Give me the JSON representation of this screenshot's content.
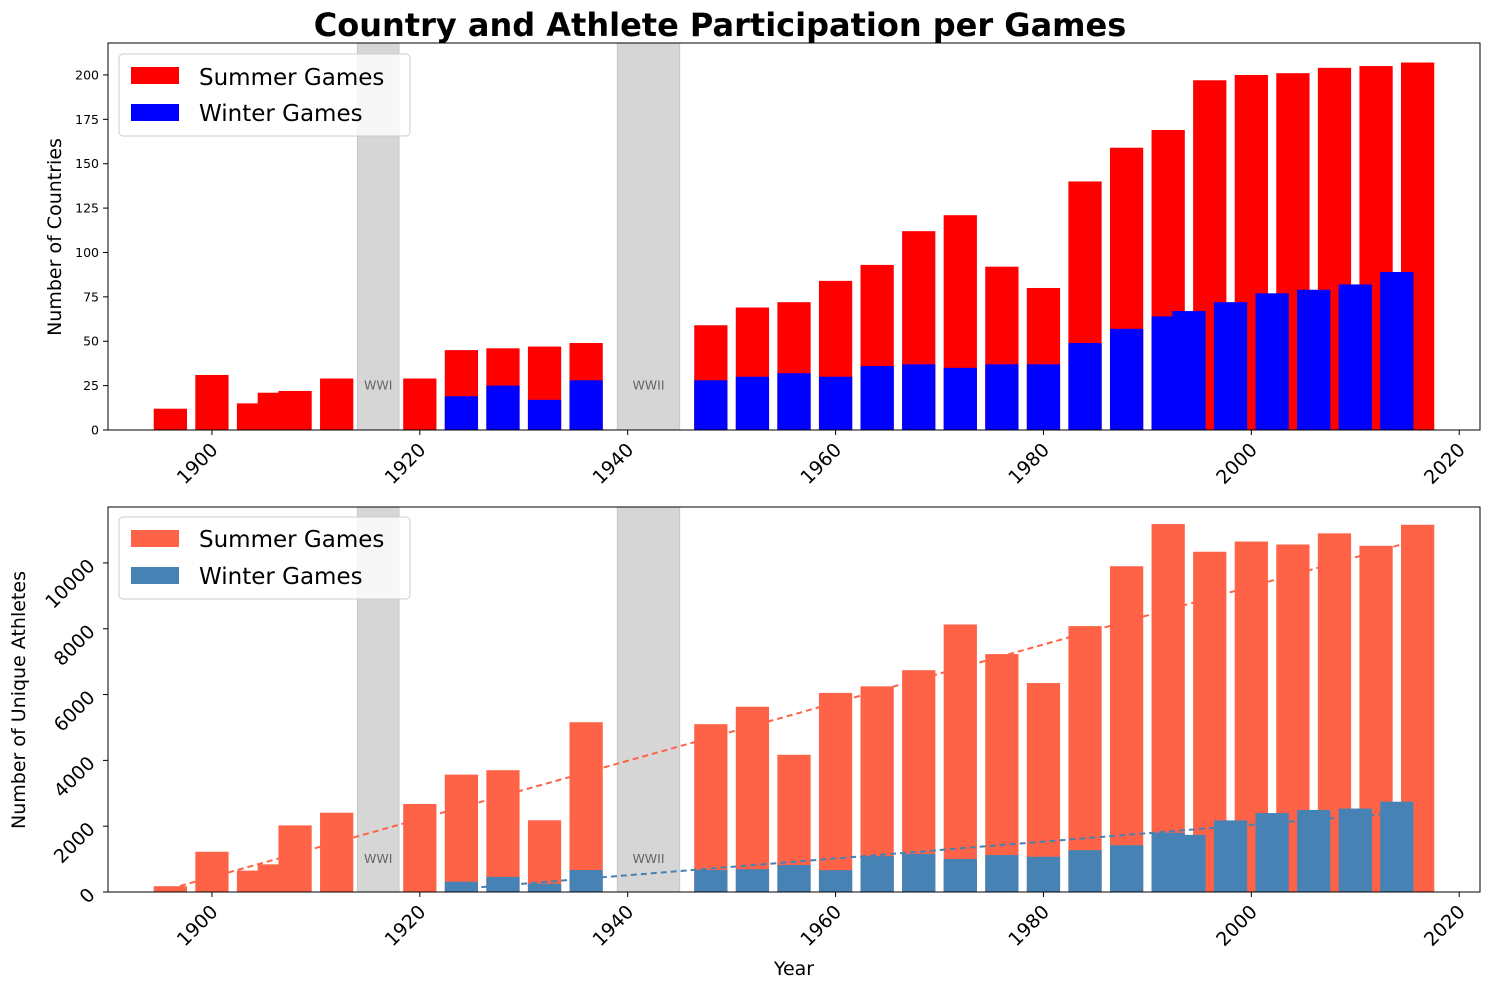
{
  "title": "Country and Athlete Participation per Games",
  "colors": {
    "summer_countries": "#ff0000",
    "winter_countries": "#0000ff",
    "summer_athletes": "#ff6347",
    "winter_athletes": "#4682b4",
    "war_band": "#d6d6d6"
  },
  "chart_data": [
    {
      "type": "bar",
      "ylabel": "Number of Countries",
      "xlabel": "",
      "xlim": [
        1890,
        2022
      ],
      "ylim": [
        0,
        218
      ],
      "xticks": [
        1900,
        1920,
        1940,
        1960,
        1980,
        2000,
        2020
      ],
      "yticks": [
        0,
        25,
        50,
        75,
        100,
        125,
        150,
        175,
        200
      ],
      "legend_position": "top-left",
      "grid": false,
      "shaded_periods": [
        {
          "label": "WWI",
          "start": 1914,
          "end": 1918
        },
        {
          "label": "WWII",
          "start": 1939,
          "end": 1945
        }
      ],
      "series": [
        {
          "name": "Summer Games",
          "x": [
            1896,
            1900,
            1904,
            1906,
            1908,
            1912,
            1920,
            1924,
            1928,
            1932,
            1936,
            1948,
            1952,
            1956,
            1960,
            1964,
            1968,
            1972,
            1976,
            1980,
            1984,
            1988,
            1992,
            1996,
            2000,
            2004,
            2008,
            2012,
            2016
          ],
          "values": [
            12,
            31,
            15,
            21,
            22,
            29,
            29,
            45,
            46,
            47,
            49,
            59,
            69,
            72,
            84,
            93,
            112,
            121,
            92,
            80,
            140,
            159,
            169,
            197,
            200,
            201,
            204,
            205,
            207
          ]
        },
        {
          "name": "Winter Games",
          "x": [
            1924,
            1928,
            1932,
            1936,
            1948,
            1952,
            1956,
            1960,
            1964,
            1968,
            1972,
            1976,
            1980,
            1984,
            1988,
            1992,
            1994,
            1998,
            2002,
            2006,
            2010,
            2014
          ],
          "values": [
            19,
            25,
            17,
            28,
            28,
            30,
            32,
            30,
            36,
            37,
            35,
            37,
            37,
            49,
            57,
            64,
            67,
            72,
            77,
            79,
            82,
            89
          ]
        }
      ]
    },
    {
      "type": "bar",
      "ylabel": "Number of Unique Athletes",
      "xlabel": "Year",
      "xlim": [
        1890,
        2022
      ],
      "ylim": [
        0,
        11700
      ],
      "xticks": [
        1900,
        1920,
        1940,
        1960,
        1980,
        2000,
        2020
      ],
      "yticks": [
        0,
        2000,
        4000,
        6000,
        8000,
        10000
      ],
      "legend_position": "top-left",
      "grid": false,
      "shaded_periods": [
        {
          "label": "WWI",
          "start": 1914,
          "end": 1918
        },
        {
          "label": "WWII",
          "start": 1939,
          "end": 1945
        }
      ],
      "series": [
        {
          "name": "Summer Games",
          "x": [
            1896,
            1900,
            1904,
            1906,
            1908,
            1912,
            1920,
            1924,
            1928,
            1932,
            1936,
            1948,
            1952,
            1956,
            1960,
            1964,
            1968,
            1972,
            1976,
            1980,
            1984,
            1988,
            1992,
            1996,
            2000,
            2004,
            2008,
            2012,
            2016
          ],
          "values": [
            176,
            1224,
            650,
            841,
            2024,
            2409,
            2676,
            3567,
            3702,
            2180,
            5160,
            5100,
            5630,
            4170,
            6050,
            6250,
            6740,
            8130,
            7230,
            6350,
            8080,
            9900,
            11180,
            10340,
            10650,
            10560,
            10900,
            10520,
            11160
          ]
        },
        {
          "name": "Winter Games",
          "x": [
            1924,
            1928,
            1932,
            1936,
            1948,
            1952,
            1956,
            1960,
            1964,
            1968,
            1972,
            1976,
            1980,
            1984,
            1988,
            1992,
            1994,
            1998,
            2002,
            2006,
            2010,
            2014
          ],
          "values": [
            313,
            460,
            252,
            668,
            669,
            694,
            821,
            665,
            1091,
            1158,
            1006,
            1123,
            1072,
            1272,
            1423,
            1801,
            1737,
            2176,
            2399,
            2494,
            2536,
            2744
          ]
        }
      ],
      "trendlines": [
        {
          "series": "Summer Games",
          "x": [
            1896,
            2016
          ],
          "y": [
            100,
            10700
          ],
          "style": "dashed"
        },
        {
          "series": "Winter Games",
          "x": [
            1924,
            2014
          ],
          "y": [
            100,
            2400
          ],
          "style": "dashed"
        }
      ]
    }
  ]
}
